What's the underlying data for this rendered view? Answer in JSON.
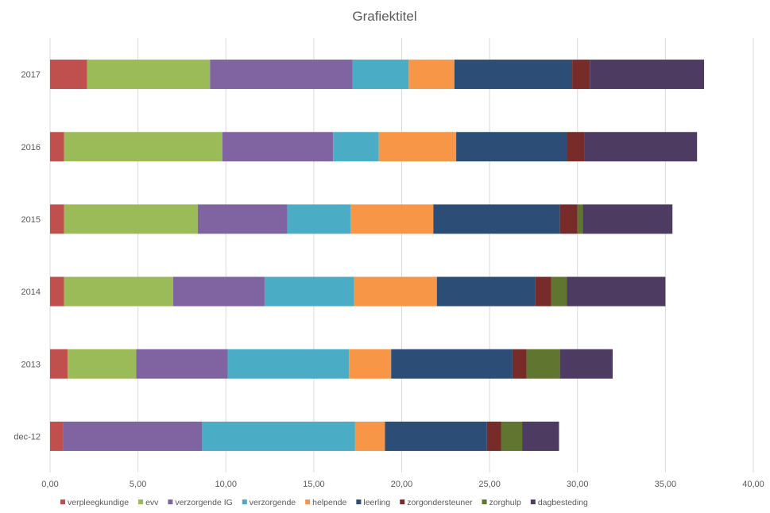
{
  "chart_data": {
    "type": "bar",
    "orientation": "horizontal",
    "stacked": true,
    "title": "Grafiektitel",
    "categories": [
      "dec-12",
      "2013",
      "2014",
      "2015",
      "2016",
      "2017"
    ],
    "xlim": [
      0,
      40
    ],
    "x_ticks": [
      "0,00",
      "5,00",
      "10,00",
      "15,00",
      "20,00",
      "25,00",
      "30,00",
      "35,00",
      "40,00"
    ],
    "x_tick_values": [
      0,
      5,
      10,
      15,
      20,
      25,
      30,
      35,
      40
    ],
    "grid": "vertical",
    "legend_position": "bottom",
    "series": [
      {
        "name": "verpleegkundige",
        "color": "#c0504d",
        "values": [
          0.75,
          1.0,
          0.8,
          0.8,
          0.8,
          2.1
        ]
      },
      {
        "name": "evv",
        "color": "#9bbb59",
        "values": [
          0,
          3.9,
          6.2,
          7.6,
          9.0,
          7.0
        ]
      },
      {
        "name": "verzorgende IG",
        "color": "#8064a2",
        "values": [
          7.9,
          5.2,
          5.2,
          5.1,
          6.3,
          8.1
        ]
      },
      {
        "name": "verzorgende",
        "color": "#4bacc6",
        "values": [
          8.7,
          6.9,
          5.1,
          3.6,
          2.6,
          3.2
        ]
      },
      {
        "name": "helpende",
        "color": "#f79646",
        "values": [
          1.7,
          2.4,
          4.7,
          4.7,
          4.4,
          2.6
        ]
      },
      {
        "name": "leerling",
        "color": "#2c4d75",
        "values": [
          5.8,
          6.9,
          5.6,
          7.2,
          6.3,
          6.7
        ]
      },
      {
        "name": "zorgondersteuner",
        "color": "#772c2a",
        "values": [
          0.8,
          0.8,
          0.9,
          1.0,
          1.0,
          1.0
        ]
      },
      {
        "name": "zorghulp",
        "color": "#5f7530",
        "values": [
          1.2,
          1.9,
          0.9,
          0.3,
          0,
          0
        ]
      },
      {
        "name": "dagbesteding",
        "color": "#4d3b62",
        "values": [
          2.1,
          3.0,
          5.6,
          5.1,
          6.4,
          6.5
        ]
      }
    ]
  }
}
